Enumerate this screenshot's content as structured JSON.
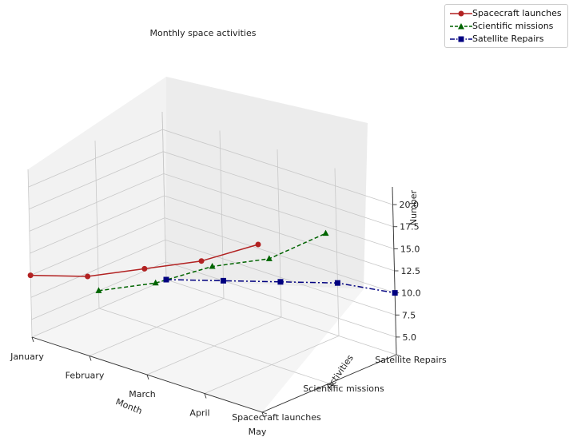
{
  "chart_data": {
    "type": "line",
    "projection": "3d",
    "title": "Monthly space activities",
    "xlabel": "Month",
    "ylabel": "Activities",
    "zlabel": "Number",
    "x_categories": [
      "January",
      "February",
      "March",
      "April",
      "May"
    ],
    "y_categories": [
      "Spacecraft launches",
      "Scientific missions",
      "Satellite Repairs"
    ],
    "z_ticks": [
      "5.0",
      "7.5",
      "10.0",
      "12.5",
      "15.0",
      "17.5",
      "20.0"
    ],
    "zlim": [
      3,
      22
    ],
    "grid": true,
    "legend_position": "top-right",
    "series": [
      {
        "name": "Spacecraft launches",
        "color": "#b22222",
        "marker": "circle",
        "linestyle": "solid",
        "values": [
          10,
          12,
          15,
          18,
          22
        ]
      },
      {
        "name": "Scientific missions",
        "color": "#006400",
        "marker": "triangle",
        "linestyle": "dashed",
        "values": [
          5,
          8,
          12,
          15,
          20
        ]
      },
      {
        "name": "Satellite Repairs",
        "color": "#000080",
        "marker": "square",
        "linestyle": "dashdot",
        "values": [
          3,
          5,
          7,
          9,
          10
        ]
      }
    ]
  }
}
